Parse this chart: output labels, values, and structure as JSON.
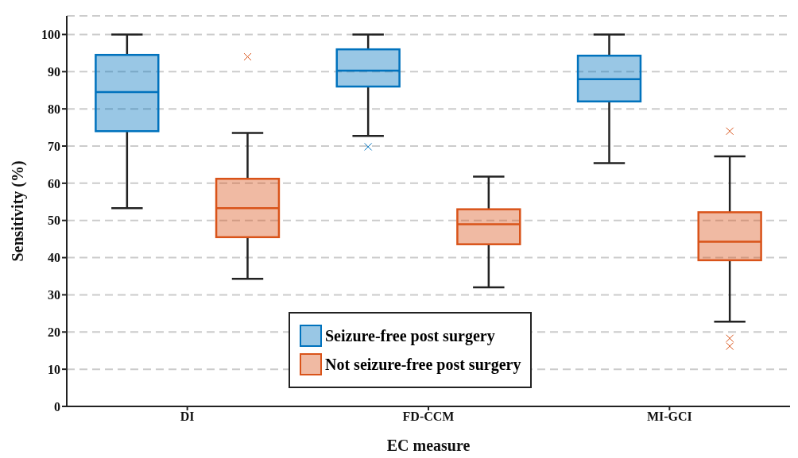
{
  "chart_data": {
    "type": "box",
    "xlabel": "EC measure",
    "ylabel": "Sensitivity (%)",
    "categories": [
      "DI",
      "FD-CCM",
      "MI-GCI"
    ],
    "series": [
      {
        "name": "Seizure-free post surgery",
        "color": "#0072bd",
        "boxes": [
          {
            "low": 53.3,
            "q1": 74,
            "median": 84.5,
            "q3": 94.5,
            "high": 100
          },
          {
            "low": 72.7,
            "q1": 86,
            "median": 90.3,
            "q3": 96,
            "high": 100,
            "outliers": [
              69.8
            ]
          },
          {
            "low": 65.4,
            "q1": 82,
            "median": 88,
            "q3": 94.3,
            "high": 100
          }
        ]
      },
      {
        "name": "Not seizure-free post surgery",
        "color": "#d95319",
        "boxes": [
          {
            "low": 34.3,
            "q1": 45.5,
            "median": 53.3,
            "q3": 61.2,
            "high": 73.5,
            "outliers": [
              94
            ]
          },
          {
            "low": 32,
            "q1": 43.6,
            "median": 49,
            "q3": 53,
            "high": 61.8
          },
          {
            "low": 22.8,
            "q1": 39.3,
            "median": 44.3,
            "q3": 52.2,
            "high": 67.2,
            "outliers": [
              74,
              18.3,
              16.2
            ]
          }
        ]
      }
    ],
    "ylim": [
      0,
      105
    ],
    "yticks": [
      0,
      10,
      20,
      30,
      40,
      50,
      60,
      70,
      80,
      90,
      100
    ],
    "grid": "y",
    "legend": "bottom",
    "marker": "cross"
  }
}
